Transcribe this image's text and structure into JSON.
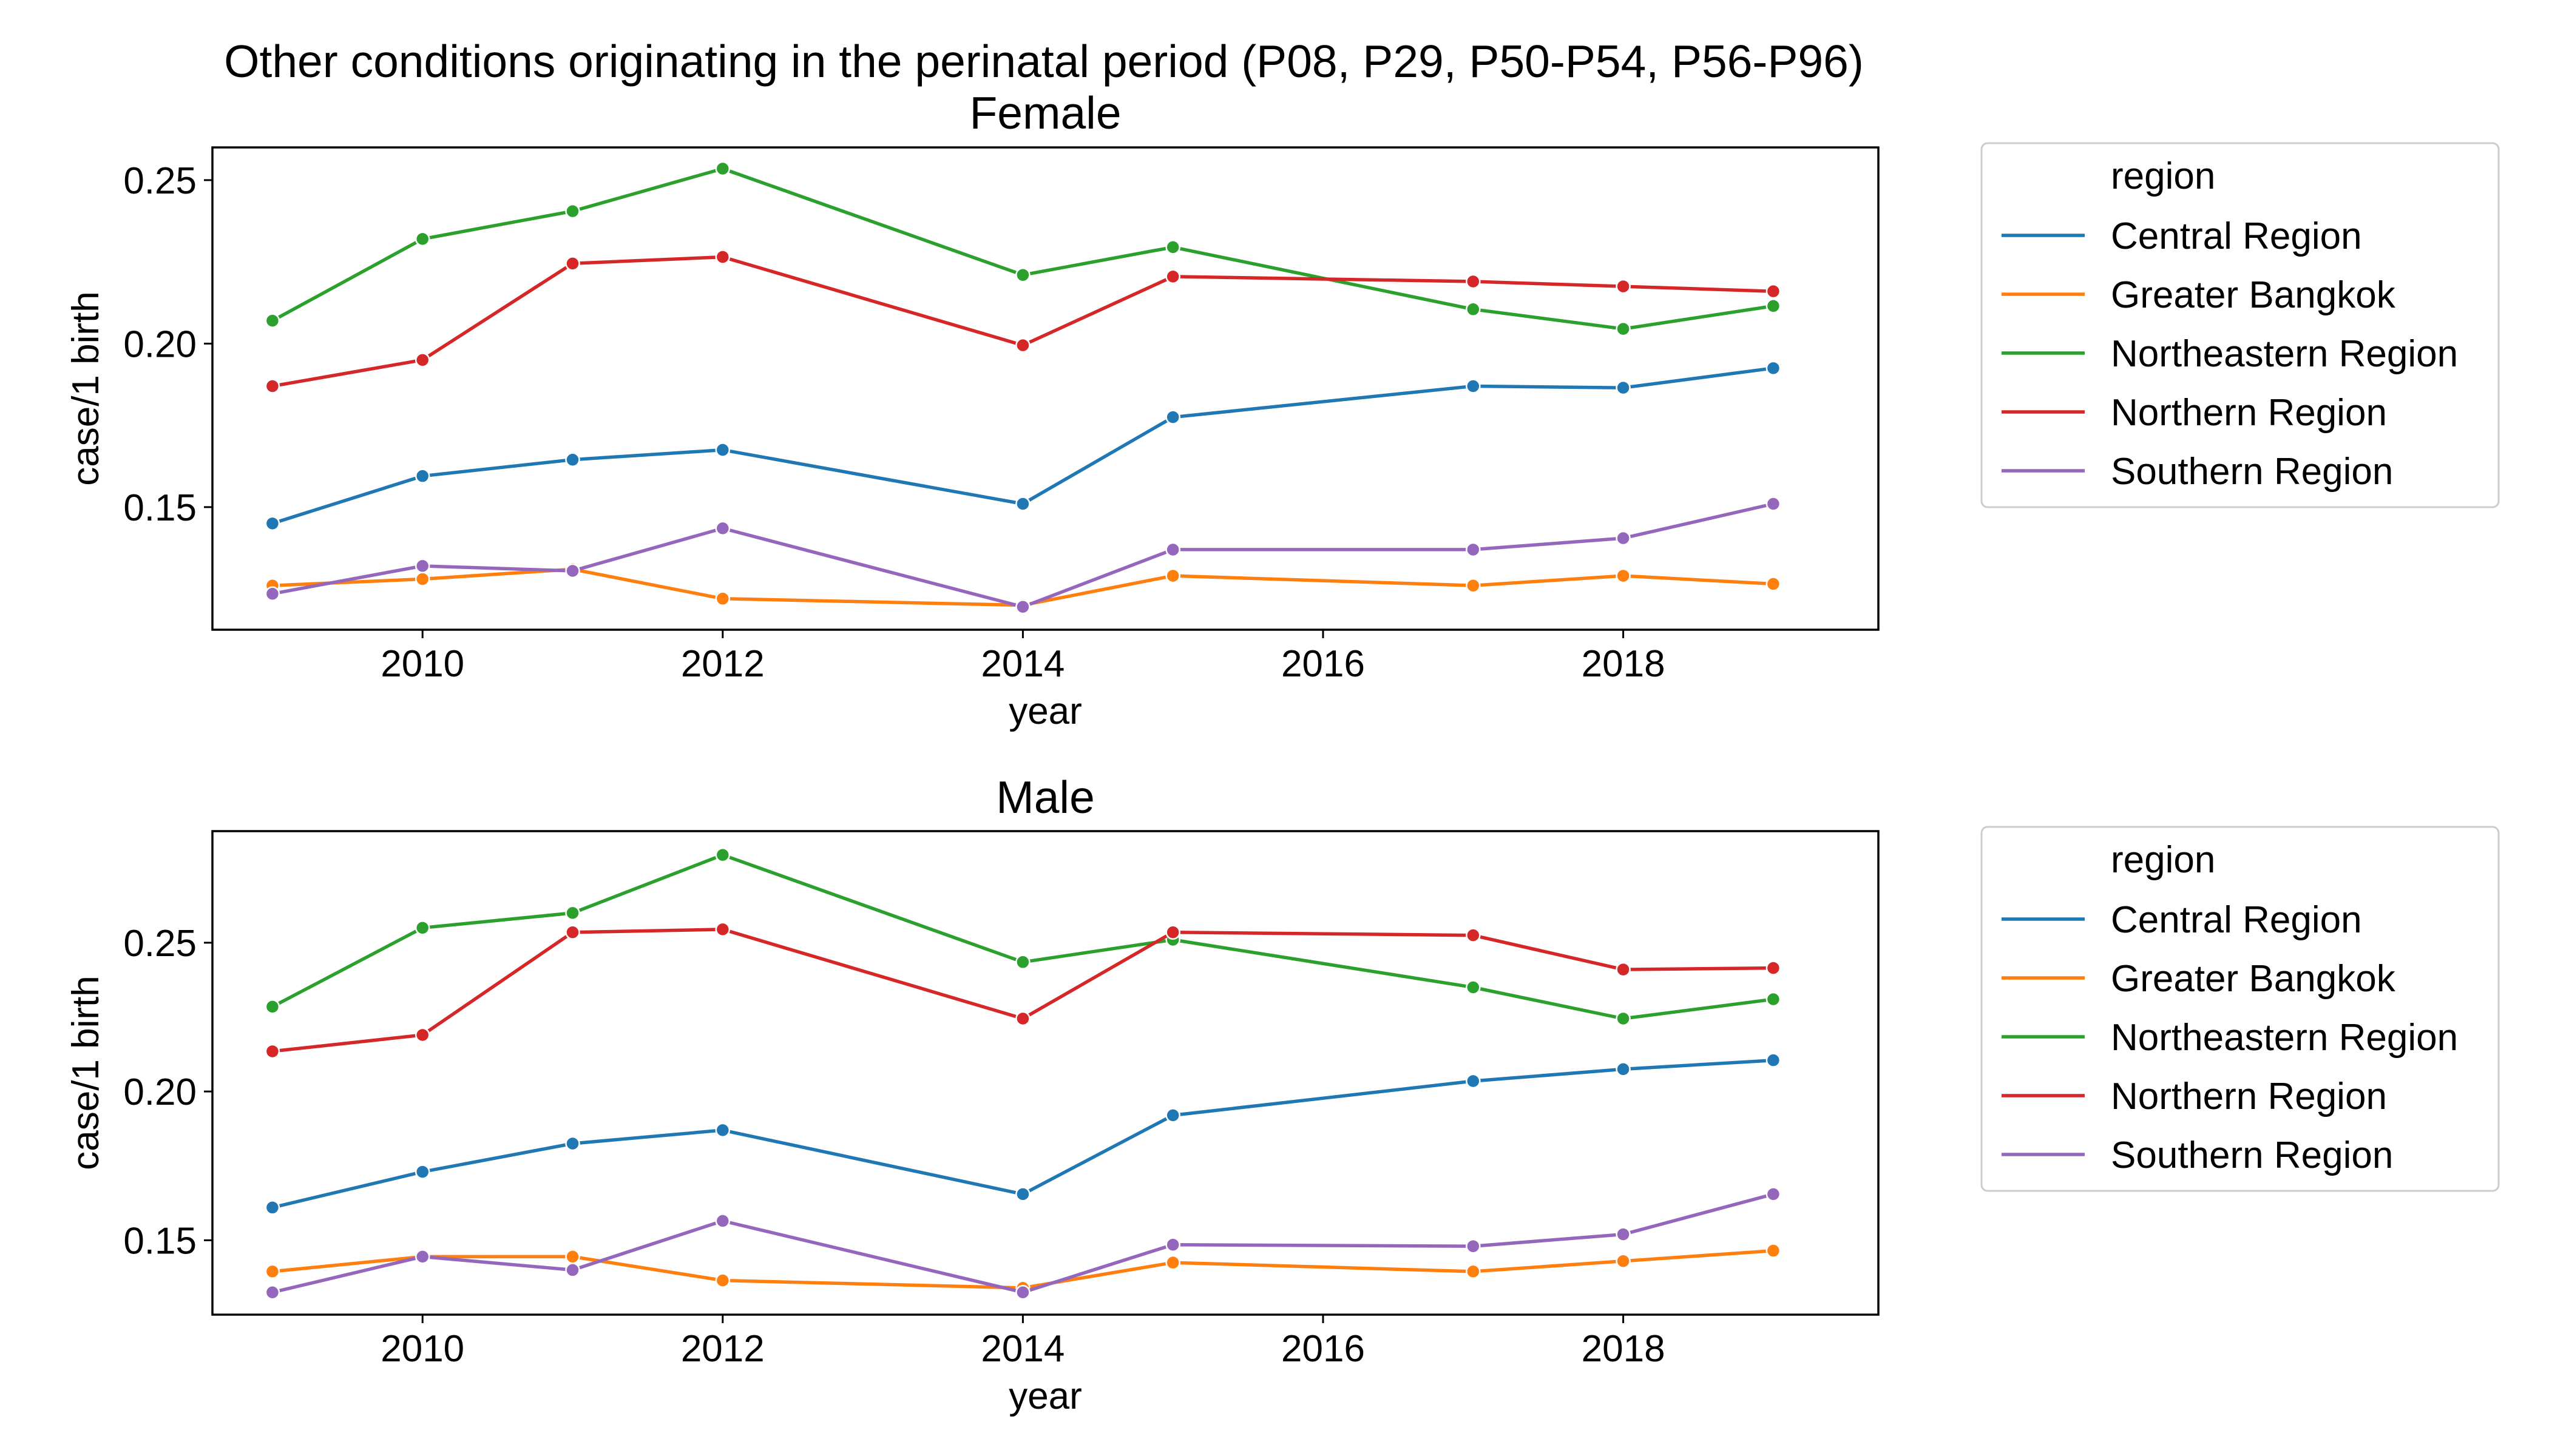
{
  "chart_data": {
    "type": "line",
    "suptitle": "Other conditions originating in the perinatal period (P08, P29, P50-P54, P56-P96)",
    "colors": {
      "Central Region": "#1f77b4",
      "Greater Bangkok": "#ff7f0e",
      "Northeastern Region": "#2ca02c",
      "Northern Region": "#d62728",
      "Southern Region": "#9467bd"
    },
    "legend_title": "region",
    "legend_position": "outside right",
    "grid": false,
    "panels": [
      {
        "title": "Female",
        "xlabel": "year",
        "ylabel": "case/1 birth",
        "xlim": [
          2008.6,
          2019.7
        ],
        "ylim": [
          0.1125,
          0.26
        ],
        "xticks": [
          2010,
          2012,
          2014,
          2016,
          2018
        ],
        "yticks": [
          0.15,
          0.2,
          0.25
        ],
        "ytick_labels": [
          "0.15",
          "0.20",
          "0.25"
        ],
        "x": [
          2009,
          2010,
          2011,
          2012,
          2014,
          2015,
          2017,
          2018,
          2019
        ],
        "series": [
          {
            "name": "Central Region",
            "values": [
              0.145,
              0.1595,
              0.1645,
              0.1675,
              0.151,
              0.1775,
              0.187,
              0.1865,
              0.1925
            ]
          },
          {
            "name": "Greater Bangkok",
            "values": [
              0.126,
              0.128,
              0.131,
              0.122,
              0.12,
              0.129,
              0.126,
              0.129,
              0.1265
            ]
          },
          {
            "name": "Northeastern Region",
            "values": [
              0.207,
              0.232,
              0.2405,
              0.2535,
              0.221,
              0.2295,
              0.2105,
              0.2045,
              0.2115
            ]
          },
          {
            "name": "Northern Region",
            "values": [
              0.187,
              0.195,
              0.2245,
              0.2265,
              0.1995,
              0.2205,
              0.219,
              0.2175,
              0.216
            ]
          },
          {
            "name": "Southern Region",
            "values": [
              0.1235,
              0.132,
              0.1305,
              0.1435,
              0.1195,
              0.137,
              0.137,
              0.1405,
              0.151
            ]
          }
        ]
      },
      {
        "title": "Male",
        "xlabel": "year",
        "ylabel": "case/1 birth",
        "xlim": [
          2008.6,
          2019.7
        ],
        "ylim": [
          0.125,
          0.2875
        ],
        "xticks": [
          2010,
          2012,
          2014,
          2016,
          2018
        ],
        "yticks": [
          0.15,
          0.2,
          0.25
        ],
        "ytick_labels": [
          "0.15",
          "0.20",
          "0.25"
        ],
        "x": [
          2009,
          2010,
          2011,
          2012,
          2014,
          2015,
          2017,
          2018,
          2019
        ],
        "series": [
          {
            "name": "Central Region",
            "values": [
              0.161,
              0.173,
              0.1825,
              0.187,
              0.1655,
              0.192,
              0.2035,
              0.2075,
              0.2105
            ]
          },
          {
            "name": "Greater Bangkok",
            "values": [
              0.1395,
              0.1445,
              0.1445,
              0.1365,
              0.134,
              0.1425,
              0.1395,
              0.143,
              0.1465
            ]
          },
          {
            "name": "Northeastern Region",
            "values": [
              0.2285,
              0.255,
              0.26,
              0.2795,
              0.2435,
              0.251,
              0.235,
              0.2245,
              0.231
            ]
          },
          {
            "name": "Northern Region",
            "values": [
              0.2135,
              0.219,
              0.2535,
              0.2545,
              0.2245,
              0.2535,
              0.2525,
              0.241,
              0.2415
            ]
          },
          {
            "name": "Southern Region",
            "values": [
              0.1325,
              0.1445,
              0.14,
              0.1565,
              0.1325,
              0.1485,
              0.148,
              0.152,
              0.1655
            ]
          }
        ]
      }
    ]
  }
}
